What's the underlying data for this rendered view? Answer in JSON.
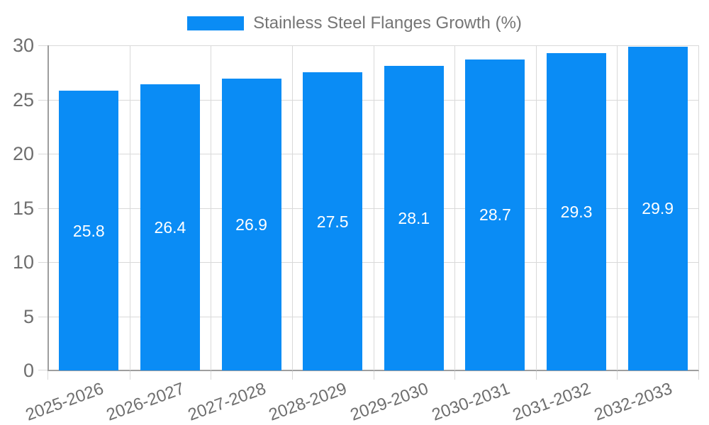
{
  "page": {
    "background_color": "#ffffff"
  },
  "legend": {
    "label": "Stainless Steel Flanges Growth (%)",
    "swatch_color": "#0a8cf5"
  },
  "chart_data": {
    "type": "bar",
    "title": "",
    "series_name": "Stainless Steel Flanges Growth (%)",
    "categories": [
      "2025-2026",
      "2026-2027",
      "2027-2028",
      "2028-2029",
      "2029-2030",
      "2030-2031",
      "2031-2032",
      "2032-2033"
    ],
    "values": [
      25.8,
      26.4,
      26.9,
      27.5,
      28.1,
      28.7,
      29.3,
      29.9
    ],
    "value_labels": [
      "25.8",
      "26.4",
      "26.9",
      "27.5",
      "28.1",
      "28.7",
      "29.3",
      "29.9"
    ],
    "xlabel": "",
    "ylabel": "",
    "ylim": [
      0,
      30
    ],
    "yticks": [
      0,
      5,
      10,
      15,
      20,
      25,
      30
    ],
    "grid": "on",
    "legend_position": "top-center",
    "x_label_rotation_deg": -20,
    "colors": {
      "bar": "#0a8cf5",
      "value_label": "#ffffff",
      "grid": "#d9d9d9",
      "axis": "#9e9e9e",
      "tick_label": "#6e6e6e",
      "legend_text": "#757575"
    }
  }
}
